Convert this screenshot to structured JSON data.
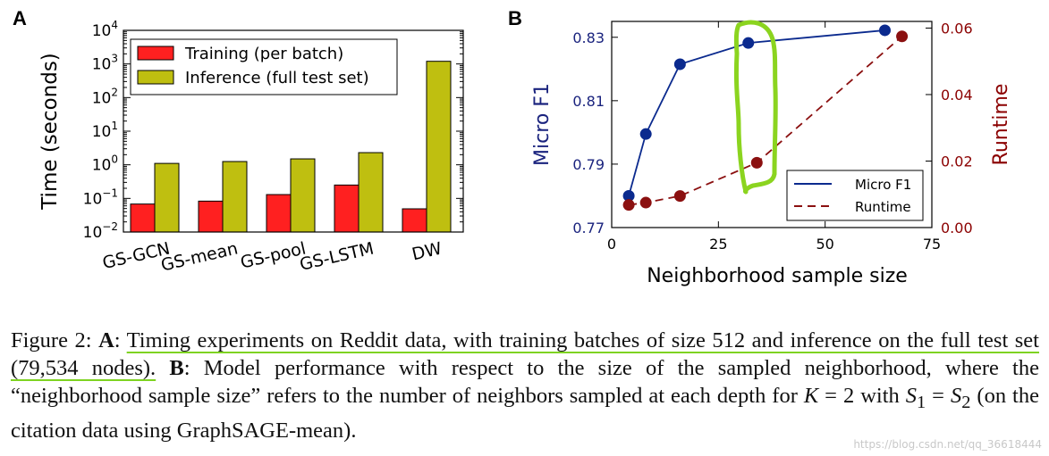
{
  "panels": {
    "A": {
      "letter": "A"
    },
    "B": {
      "letter": "B"
    }
  },
  "chart_data": [
    {
      "id": "A",
      "type": "bar",
      "yscale": "log",
      "ylabel": "Time (seconds)",
      "categories": [
        "GS-GCN",
        "GS-mean",
        "GS-pool",
        "GS-LSTM",
        "DW"
      ],
      "series": [
        {
          "name": "Training (per batch)",
          "color": "#ff2020",
          "values": [
            0.068,
            0.083,
            0.13,
            0.25,
            0.049
          ]
        },
        {
          "name": "Inference (full test set)",
          "color": "#bfbf10",
          "values": [
            1.1,
            1.25,
            1.5,
            2.3,
            1200
          ]
        }
      ],
      "ylim": [
        0.01,
        10000
      ],
      "yticks": [
        {
          "value": 0.01,
          "base": "10",
          "exp": "−2"
        },
        {
          "value": 0.1,
          "base": "10",
          "exp": "−1"
        },
        {
          "value": 1,
          "base": "10",
          "exp": "0"
        },
        {
          "value": 10,
          "base": "10",
          "exp": "1"
        },
        {
          "value": 100,
          "base": "10",
          "exp": "2"
        },
        {
          "value": 1000,
          "base": "10",
          "exp": "3"
        },
        {
          "value": 10000,
          "base": "10",
          "exp": "4"
        }
      ],
      "legend": "top-left"
    },
    {
      "id": "B",
      "type": "line",
      "xlabel": "Neighborhood sample size",
      "xlim": [
        0,
        75
      ],
      "xticks": [
        0,
        25,
        50,
        75
      ],
      "left_axis": {
        "label": "Micro F1",
        "color": "#1a237e",
        "ylim": [
          0.77,
          0.835
        ],
        "ticks": [
          {
            "value": 0.77,
            "label": "0.77"
          },
          {
            "value": 0.79,
            "label": "0.79"
          },
          {
            "value": 0.81,
            "label": "0.81"
          },
          {
            "value": 0.83,
            "label": "0.83"
          }
        ]
      },
      "right_axis": {
        "label": "Runtime",
        "color": "#8b0000",
        "ylim": [
          0,
          0.062
        ],
        "ticks": [
          {
            "value": 0.0,
            "label": "0.00"
          },
          {
            "value": 0.02,
            "label": "0.02"
          },
          {
            "value": 0.04,
            "label": "0.04"
          },
          {
            "value": 0.06,
            "label": "0.06"
          }
        ]
      },
      "series": [
        {
          "name": "Micro F1",
          "axis": "left",
          "style": "solid",
          "color": "#0b2a8e",
          "x": [
            4,
            8,
            16,
            32,
            64
          ],
          "y": [
            0.78,
            0.7995,
            0.8215,
            0.8282,
            0.8322
          ]
        },
        {
          "name": "Runtime",
          "axis": "right",
          "style": "dashed",
          "color": "#8b1010",
          "x": [
            4,
            8,
            16,
            34,
            68
          ],
          "y": [
            0.0068,
            0.0075,
            0.0095,
            0.0195,
            0.0575
          ]
        }
      ],
      "legend": "bottom-right",
      "annotation": "green hand-drawn loop around x = 32"
    }
  ],
  "caption": {
    "fig_label": "Figure 2: ",
    "part_a_label": "A",
    "colon1": ": ",
    "part_a_text": "Timing experiments on Reddit data, with training batches of size 512 and inference on the full test set (79,534 nodes).",
    "space": " ",
    "part_b_label": "B",
    "colon2": ": ",
    "text_1": "Model performance with respect to the size of the sampled neighborhood, where the “neighborhood sample size” refers to the number of neighbors sampled at each depth for ",
    "math_k": "K",
    "eq_2": " = 2 with ",
    "math_s": "S",
    "sub_1": "1",
    "eq": " = ",
    "math_s2": "S",
    "sub_2": "2",
    "text_2": " (on the citation data using GraphSAGE-mean)."
  },
  "watermark": "https://blog.csdn.net/qq_36618444"
}
